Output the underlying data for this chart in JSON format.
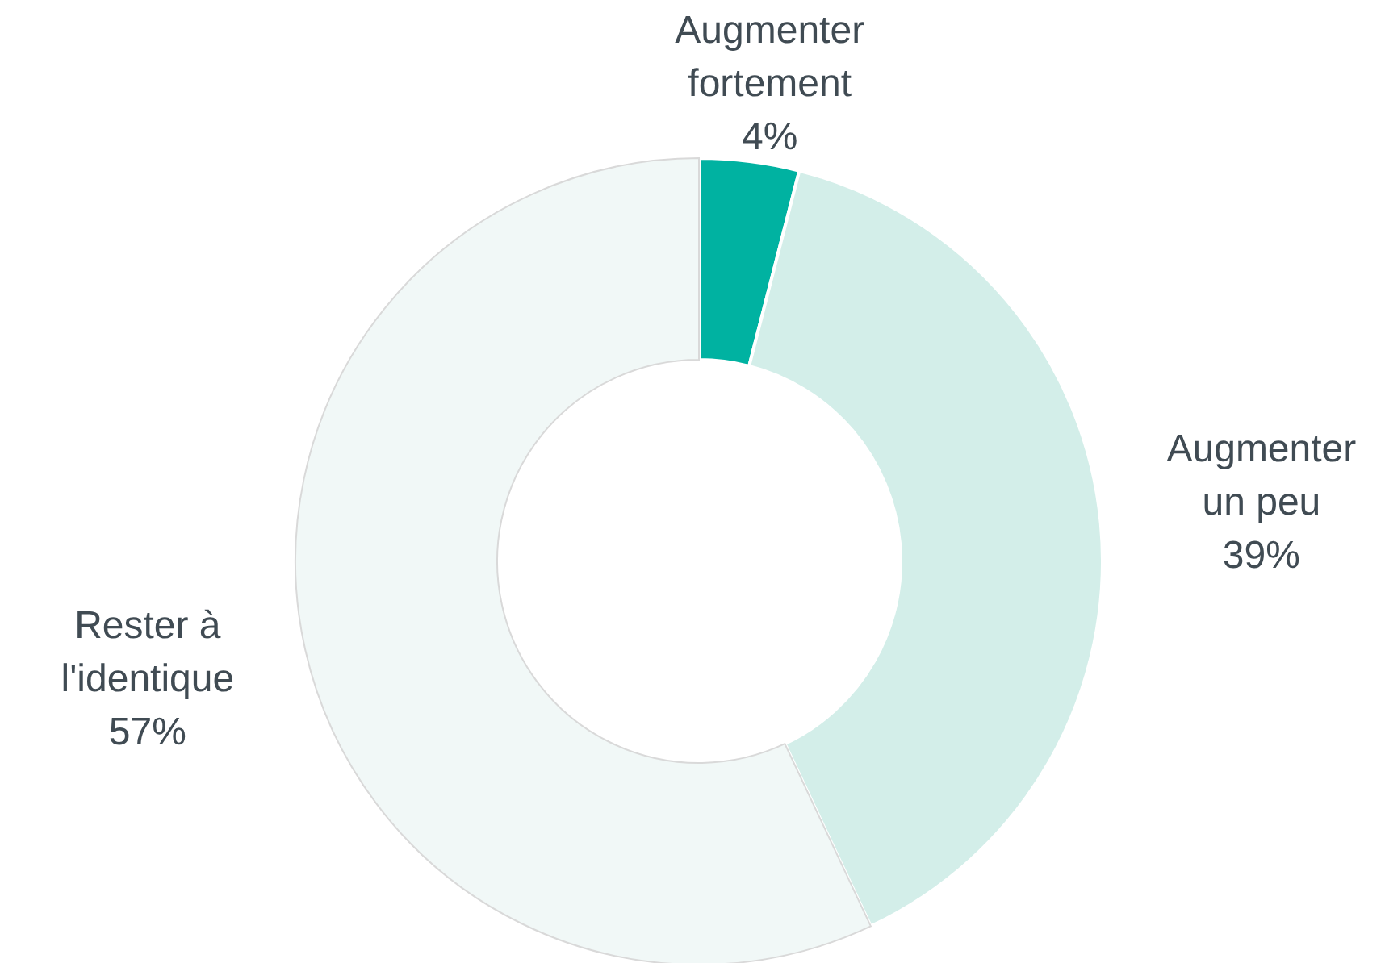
{
  "chart_data": {
    "type": "donut",
    "categories": [
      "Augmenter fortement",
      "Augmenter un peu",
      "Rester à l'identique"
    ],
    "values": [
      4,
      39,
      57
    ],
    "colors": [
      "#00b2a1",
      "#d3eee9",
      "#f1f8f7"
    ],
    "value_labels": [
      "4%",
      "39%",
      "57%"
    ]
  }
}
